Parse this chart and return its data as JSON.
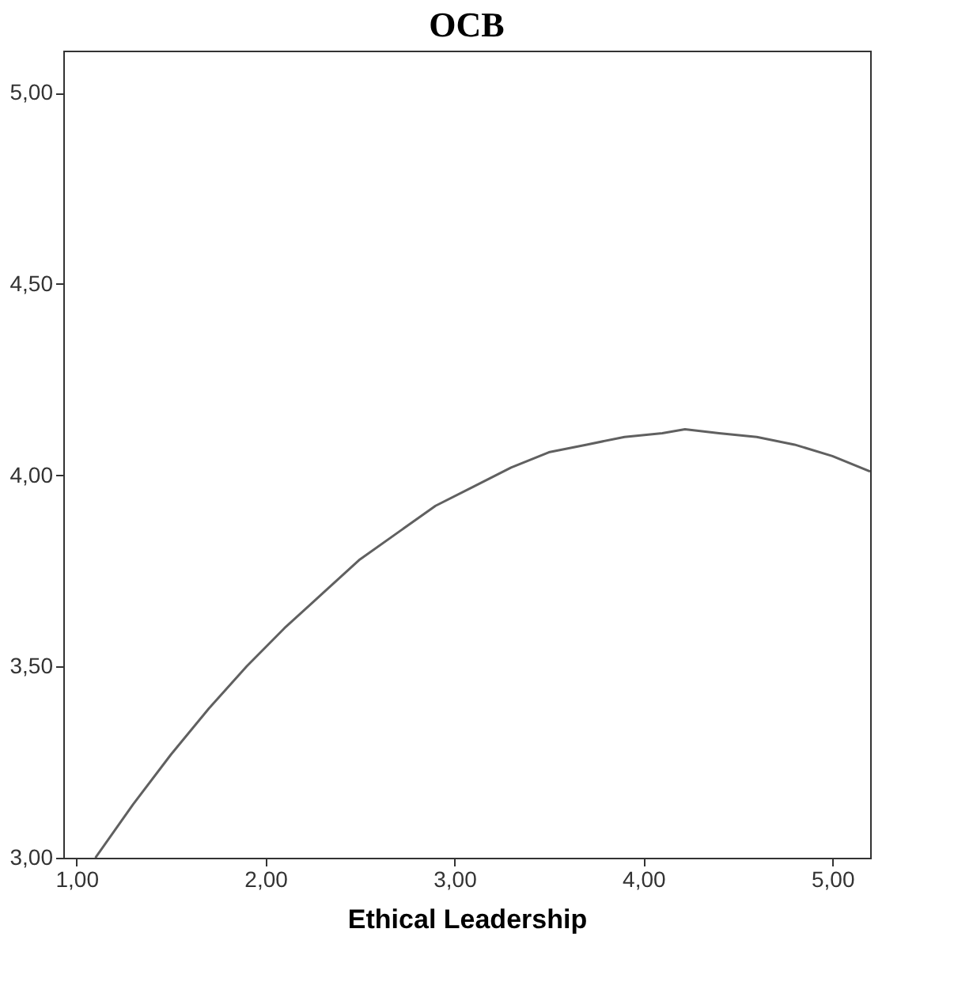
{
  "chart_data": {
    "type": "line",
    "title": "OCB",
    "xlabel": "Ethical Leadership",
    "x": [
      1.1,
      1.3,
      1.5,
      1.7,
      1.9,
      2.1,
      2.3,
      2.5,
      2.7,
      2.9,
      3.1,
      3.3,
      3.5,
      3.7,
      3.9,
      4.1,
      4.22,
      4.4,
      4.6,
      4.8,
      5.0,
      5.2
    ],
    "series": [
      {
        "color": "#606060",
        "values": [
          3.0,
          3.14,
          3.27,
          3.39,
          3.5,
          3.6,
          3.69,
          3.78,
          3.85,
          3.92,
          3.97,
          4.02,
          4.06,
          4.08,
          4.1,
          4.11,
          4.12,
          4.11,
          4.1,
          4.08,
          4.05,
          4.01
        ]
      }
    ],
    "xlim": [
      0.93,
      5.2
    ],
    "ylim": [
      3.0,
      5.11
    ],
    "xticks": [
      {
        "value": 1,
        "label": "1,00"
      },
      {
        "value": 2,
        "label": "2,00"
      },
      {
        "value": 3,
        "label": "3,00"
      },
      {
        "value": 4,
        "label": "4,00"
      },
      {
        "value": 5,
        "label": "5,00"
      }
    ],
    "yticks": [
      {
        "value": 3,
        "label": "3,00"
      },
      {
        "value": 3.5,
        "label": "3,50"
      },
      {
        "value": 4,
        "label": "4,00"
      },
      {
        "value": 4.5,
        "label": "4,50"
      },
      {
        "value": 5,
        "label": "5,00"
      }
    ],
    "grid": false,
    "legend": false,
    "marker": "none",
    "line_style": "solid"
  }
}
